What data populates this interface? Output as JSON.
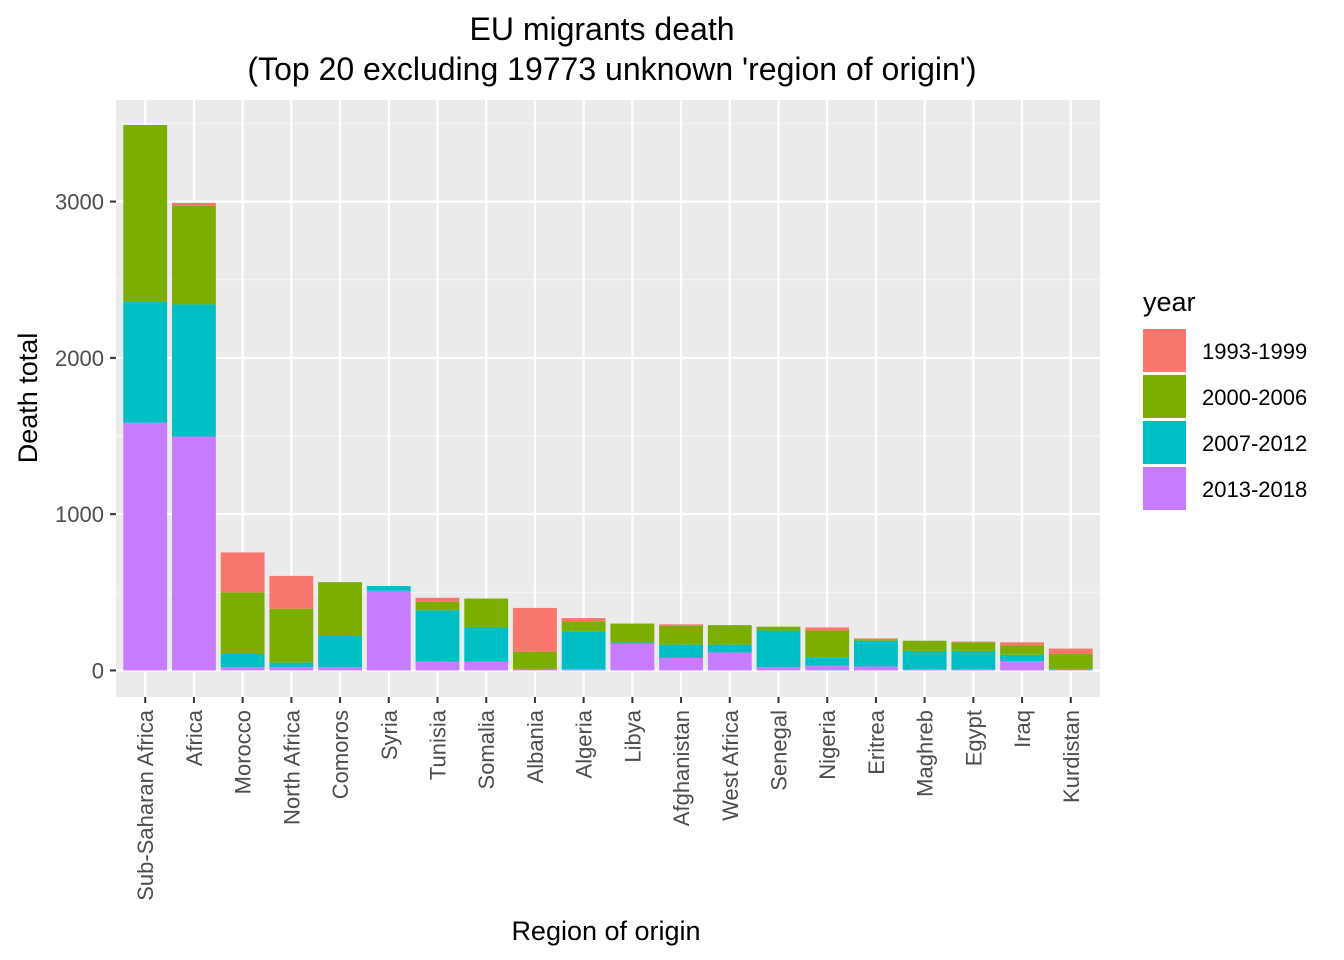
{
  "chart_data": {
    "type": "bar",
    "stacked": true,
    "title": "EU migrants death",
    "subtitle": "(Top 20 excluding 19773 unknown 'region of origin')",
    "xlabel": "Region of origin",
    "ylabel": "Death total",
    "ylim": [
      -170,
      3650
    ],
    "yticks": [
      0,
      1000,
      2000,
      3000
    ],
    "grid": true,
    "legend": {
      "title": "year",
      "placement": "right"
    },
    "categories": [
      "Sub-Saharan Africa",
      "Africa",
      "Morocco",
      "North Africa",
      "Comoros",
      "Syria",
      "Tunisia",
      "Somalia",
      "Albania",
      "Algeria",
      "Libya",
      "Afghanistan",
      "West Africa",
      "Senegal",
      "Nigeria",
      "Eritrea",
      "Maghreb",
      "Egypt",
      "Iraq",
      "Kurdistan"
    ],
    "series": [
      {
        "name": "2013-2018",
        "color": "#C77CFF",
        "values": [
          1585,
          1497,
          20,
          20,
          20,
          510,
          55,
          55,
          5,
          10,
          170,
          80,
          115,
          20,
          30,
          25,
          5,
          5,
          60,
          5
        ]
      },
      {
        "name": "2007-2012",
        "color": "#00BFC4",
        "values": [
          775,
          845,
          85,
          30,
          200,
          30,
          330,
          220,
          5,
          240,
          10,
          85,
          50,
          235,
          55,
          165,
          120,
          120,
          40,
          5
        ]
      },
      {
        "name": "2000-2006",
        "color": "#7CAE00",
        "values": [
          1130,
          630,
          395,
          345,
          345,
          0,
          55,
          185,
          110,
          65,
          120,
          120,
          125,
          25,
          170,
          10,
          65,
          55,
          60,
          95
        ]
      },
      {
        "name": "1993-1999",
        "color": "#F8766D",
        "values": [
          0,
          20,
          255,
          210,
          0,
          0,
          25,
          0,
          280,
          20,
          0,
          10,
          0,
          0,
          20,
          5,
          0,
          5,
          20,
          35
        ]
      }
    ],
    "legend_order": [
      "1993-1999",
      "2000-2006",
      "2007-2012",
      "2013-2018"
    ]
  }
}
